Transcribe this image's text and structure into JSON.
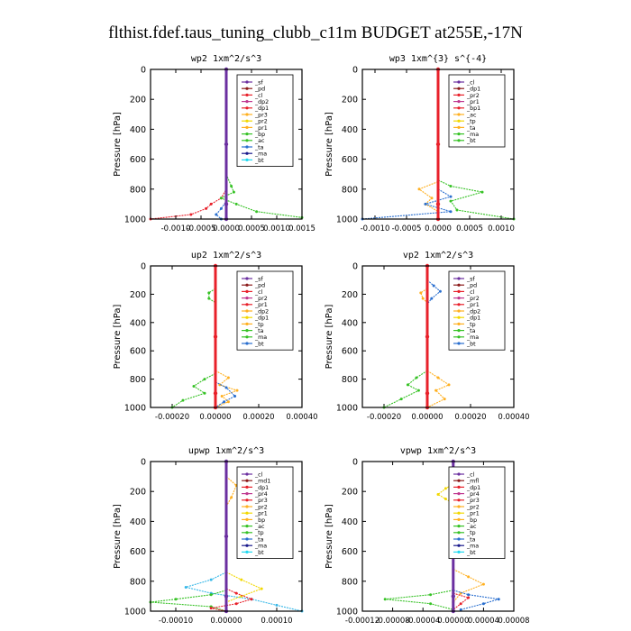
{
  "figure_title": "flthist.fdef.taus_tuning_clubb_c11m  BUDGET at255E,-17N",
  "colors": {
    "purple": "#6b2fa0",
    "darkred": "#8b1a1a",
    "red": "#e8202a",
    "orange": "#ffb020",
    "yellow": "#f2d800",
    "green": "#36c225",
    "blue": "#2a6fcf",
    "navy": "#1a1a8c",
    "lightblue": "#38b8e8",
    "cyan": "#20d8f0",
    "magenta": "#c03890",
    "black": "#000000"
  },
  "chart_data": [
    {
      "type": "line",
      "title": "wp2   1xm^2/s^3",
      "ylabel": "Pressure  [hPa]",
      "xlim": [
        -0.0015,
        0.0015
      ],
      "ylim": [
        1000,
        0
      ],
      "xticks": [
        -0.001,
        -0.0005,
        0,
        0.0005,
        0.001,
        0.0015
      ],
      "xtick_labels": [
        "-0.0010",
        "-0.0005",
        "0.0000",
        "0.0005",
        "0.0010",
        "0.0015"
      ],
      "yticks": [
        0,
        200,
        400,
        600,
        800,
        1000
      ],
      "legend": [
        "_sf",
        "_pd",
        "_cl",
        "_dp2",
        "_dp1",
        "_pr3",
        "_pr2",
        "_pr1",
        "_bp",
        "_ac",
        "_ta",
        "_ma",
        "_bt"
      ],
      "series": [
        {
          "name": "_dp1",
          "color": "red",
          "x": [
            0,
            0,
            -0.0001,
            -0.0003,
            -0.0004,
            -0.0007,
            -0.0015
          ],
          "y": [
            700,
            800,
            860,
            900,
            930,
            970,
            1000
          ]
        },
        {
          "name": "_pr1",
          "color": "green",
          "x": [
            0,
            0.0001,
            0.00015,
            -0.0001,
            0.0002,
            0.0006,
            0.0015
          ],
          "y": [
            700,
            780,
            820,
            860,
            900,
            950,
            990
          ]
        },
        {
          "name": "_ta",
          "color": "blue",
          "x": [
            0,
            0,
            -0.0001,
            -0.0002,
            -0.0001
          ],
          "y": [
            800,
            880,
            930,
            970,
            1000
          ]
        },
        {
          "name": "_sf",
          "color": "purple",
          "x": [
            0,
            0,
            0,
            0
          ],
          "y": [
            0,
            500,
            900,
            1000
          ]
        }
      ]
    },
    {
      "type": "line",
      "title": "wp3   1xm^{3} s^{-4}",
      "ylabel": "Pressure  [hPa]",
      "xlim": [
        -0.0012,
        0.0012
      ],
      "ylim": [
        1000,
        0
      ],
      "xticks": [
        -0.001,
        -0.0005,
        0,
        0.0005,
        0.001
      ],
      "xtick_labels": [
        "-0.0010",
        "-0.0005",
        "0.0000",
        "0.0005",
        "0.0010"
      ],
      "yticks": [
        0,
        200,
        400,
        600,
        800,
        1000
      ],
      "legend": [
        "_cl",
        "_dp1",
        "_pr2",
        "_pr1",
        "_bp1",
        "_ac",
        "_tp",
        "_ta",
        "_ma",
        "_bt"
      ],
      "series": [
        {
          "name": "_ac",
          "color": "green",
          "x": [
            0,
            0.0002,
            0.0007,
            0.0002,
            0.0003,
            0.0012
          ],
          "y": [
            740,
            780,
            820,
            880,
            940,
            1000
          ]
        },
        {
          "name": "_pr2",
          "color": "orange",
          "x": [
            0,
            -0.0003,
            -0.0001,
            -0.0002,
            0
          ],
          "y": [
            750,
            800,
            860,
            900,
            950
          ]
        },
        {
          "name": "_ta",
          "color": "blue",
          "x": [
            0,
            0.0002,
            -0.0002,
            0.0002,
            -0.0012
          ],
          "y": [
            800,
            850,
            900,
            950,
            1000
          ]
        },
        {
          "name": "_cl",
          "color": "red",
          "x": [
            0,
            0,
            0,
            0
          ],
          "y": [
            0,
            500,
            900,
            1000
          ]
        }
      ]
    },
    {
      "type": "line",
      "title": "up2   1xm^2/s^3",
      "ylabel": "Pressure  [hPa]",
      "xlim": [
        -0.0003,
        0.0004
      ],
      "ylim": [
        1000,
        0
      ],
      "xticks": [
        -0.0002,
        0,
        0.0002,
        0.0004
      ],
      "xtick_labels": [
        "-0.00020",
        "0.00000",
        "0.00020",
        "0.00040"
      ],
      "yticks": [
        0,
        200,
        400,
        600,
        800,
        1000
      ],
      "legend": [
        "_sf",
        "_pd",
        "_cl",
        "_pr2",
        "_pr1",
        "_dp2",
        "_dp1",
        "_tp",
        "_ta",
        "_ma",
        "_bt"
      ],
      "series": [
        {
          "name": "_pr2",
          "color": "orange",
          "x": [
            0,
            6e-05,
            2e-05,
            0.0001,
            3e-05,
            6e-05,
            0
          ],
          "y": [
            740,
            790,
            840,
            880,
            920,
            960,
            1000
          ]
        },
        {
          "name": "_dp2",
          "color": "green",
          "x": [
            0,
            -5e-05,
            -0.0001,
            -5e-05,
            -0.00015,
            -0.0002
          ],
          "y": [
            760,
            800,
            850,
            900,
            950,
            1000
          ]
        },
        {
          "name": "_tp",
          "color": "blue",
          "x": [
            0,
            5e-05,
            9e-05,
            4e-05,
            0
          ],
          "y": [
            820,
            860,
            920,
            960,
            1000
          ]
        },
        {
          "name": "_pr1",
          "color": "green",
          "x": [
            0,
            -3e-05,
            -3e-05,
            0
          ],
          "y": [
            160,
            190,
            230,
            260
          ]
        },
        {
          "name": "_pd",
          "color": "red",
          "x": [
            0,
            0,
            0,
            0
          ],
          "y": [
            0,
            500,
            900,
            1000
          ]
        }
      ]
    },
    {
      "type": "line",
      "title": "vp2   1xm^2/s^3",
      "ylabel": "Pressure  [hPa]",
      "xlim": [
        -0.0003,
        0.0004
      ],
      "ylim": [
        1000,
        0
      ],
      "xticks": [
        -0.0002,
        0,
        0.0002,
        0.0004
      ],
      "xtick_labels": [
        "-0.00020",
        "0.00000",
        "0.00020",
        "0.00040"
      ],
      "yticks": [
        0,
        200,
        400,
        600,
        800,
        1000
      ],
      "legend": [
        "_sf",
        "_pd",
        "_cl",
        "_pr2",
        "_pr1",
        "_dp2",
        "_dp1",
        "_tp",
        "_ta",
        "_ma",
        "_bt"
      ],
      "series": [
        {
          "name": "_tp",
          "color": "blue",
          "x": [
            0,
            3e-05,
            6e-05,
            2e-05,
            0
          ],
          "y": [
            100,
            140,
            180,
            230,
            270
          ]
        },
        {
          "name": "_pr2",
          "color": "orange",
          "x": [
            0,
            -3e-05,
            -2e-05,
            0
          ],
          "y": [
            160,
            190,
            230,
            260
          ]
        },
        {
          "name": "_dp2",
          "color": "green",
          "x": [
            0,
            -5e-05,
            -9e-05,
            -4e-05,
            -0.00012,
            -0.0002
          ],
          "y": [
            740,
            790,
            840,
            880,
            940,
            1000
          ]
        },
        {
          "name": "_pr1",
          "color": "orange",
          "x": [
            0,
            5e-05,
            0.0001,
            4e-05,
            8e-05,
            0
          ],
          "y": [
            740,
            790,
            840,
            880,
            940,
            1000
          ]
        },
        {
          "name": "_pd",
          "color": "red",
          "x": [
            0,
            0,
            0,
            0
          ],
          "y": [
            0,
            500,
            900,
            1000
          ]
        }
      ]
    },
    {
      "type": "line",
      "title": "upwp   1xm^2/s^3",
      "ylabel": "Pressure  [hPa]",
      "xlim": [
        -0.00015,
        0.00015
      ],
      "ylim": [
        1000,
        0
      ],
      "xticks": [
        -0.0001,
        0,
        0.0001
      ],
      "xtick_labels": [
        "-0.00010",
        "0.00000",
        "0.00010"
      ],
      "yticks": [
        0,
        200,
        400,
        600,
        800,
        1000
      ],
      "legend": [
        "_cl",
        "_md1",
        "_dp1",
        "_pr4",
        "_pr3",
        "_pr2",
        "_pr1",
        "_bp",
        "_ac",
        "_tp",
        "_ta",
        "_ma",
        "_bt"
      ],
      "series": [
        {
          "name": "_tp",
          "color": "lightblue",
          "x": [
            0,
            -3e-05,
            -8e-05,
            -3e-05,
            5e-05,
            0.0001,
            0.00015
          ],
          "y": [
            740,
            790,
            840,
            880,
            920,
            960,
            1000
          ]
        },
        {
          "name": "_pr2",
          "color": "yellow",
          "x": [
            0,
            3e-05,
            7e-05,
            3e-05,
            0
          ],
          "y": [
            740,
            790,
            850,
            900,
            940
          ]
        },
        {
          "name": "_bp",
          "color": "green",
          "x": [
            0,
            -3e-05,
            -0.0001,
            -0.00015,
            -3e-05,
            0
          ],
          "y": [
            860,
            890,
            920,
            940,
            970,
            1000
          ]
        },
        {
          "name": "_dp1",
          "color": "red",
          "x": [
            0,
            2e-05,
            5e-05,
            2e-05,
            -3e-05,
            0
          ],
          "y": [
            850,
            880,
            920,
            950,
            980,
            1000
          ]
        },
        {
          "name": "_ac",
          "color": "orange",
          "x": [
            0,
            2e-05,
            1e-05,
            0
          ],
          "y": [
            100,
            160,
            240,
            300
          ]
        },
        {
          "name": "_cl",
          "color": "purple",
          "x": [
            0,
            0,
            0,
            0
          ],
          "y": [
            0,
            500,
            900,
            1000
          ]
        }
      ]
    },
    {
      "type": "line",
      "title": "vpwp   1xm^2/s^3",
      "ylabel": "Pressure  [hPa]",
      "xlim": [
        -0.00012,
        8e-05
      ],
      "ylim": [
        1000,
        0
      ],
      "xticks": [
        -0.00012,
        -8e-05,
        -4e-05,
        0,
        4e-05,
        8e-05
      ],
      "xtick_labels": [
        "-0.00012",
        "-0.00008",
        "-0.00004",
        "0.00000",
        "0.00004",
        "0.00008"
      ],
      "yticks": [
        0,
        200,
        400,
        600,
        800,
        1000
      ],
      "legend": [
        "_cl",
        "_mfl",
        "_dp1",
        "_pr4",
        "_pr3",
        "_pr2",
        "_pr1",
        "_bp",
        "_ac",
        "_tp",
        "_ta",
        "_ma",
        "_bt"
      ],
      "series": [
        {
          "name": "_pr2",
          "color": "yellow",
          "x": [
            0,
            -1e-05,
            -2e-05,
            -1e-05,
            0
          ],
          "y": [
            150,
            180,
            220,
            250,
            280
          ]
        },
        {
          "name": "_pr1",
          "color": "orange",
          "x": [
            0,
            2e-05,
            4e-05,
            1e-05,
            0
          ],
          "y": [
            720,
            770,
            820,
            880,
            940
          ]
        },
        {
          "name": "_bp",
          "color": "green",
          "x": [
            0,
            -3e-05,
            -9e-05,
            -3e-05,
            0
          ],
          "y": [
            860,
            890,
            920,
            950,
            990
          ]
        },
        {
          "name": "_tp",
          "color": "blue",
          "x": [
            0,
            2e-05,
            6e-05,
            4e-05,
            1e-05
          ],
          "y": [
            860,
            890,
            920,
            950,
            990
          ]
        },
        {
          "name": "_dp1",
          "color": "red",
          "x": [
            0,
            2e-05,
            1e-05,
            0
          ],
          "y": [
            880,
            910,
            950,
            990
          ]
        },
        {
          "name": "_cl",
          "color": "purple",
          "x": [
            0,
            0,
            0,
            0
          ],
          "y": [
            0,
            500,
            900,
            1000
          ]
        }
      ]
    }
  ]
}
